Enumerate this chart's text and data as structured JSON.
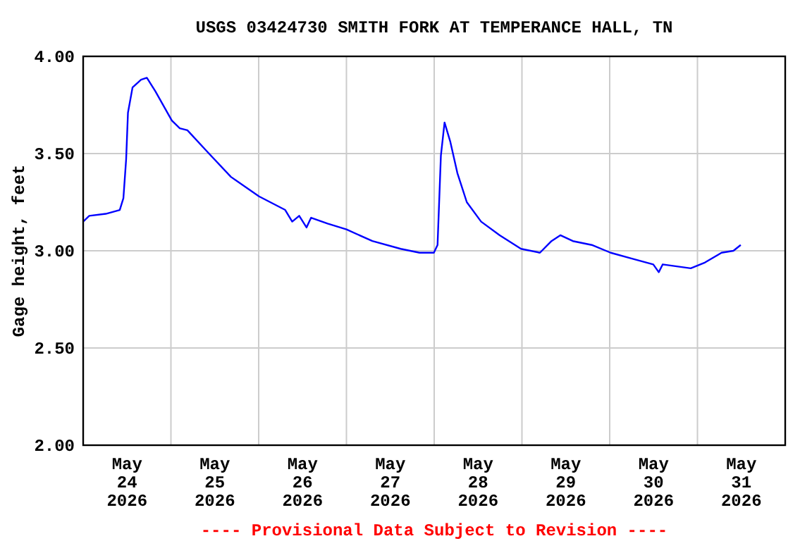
{
  "chart_data": {
    "type": "line",
    "title": "USGS 03424730 SMITH FORK AT TEMPERANCE HALL, TN",
    "ylabel": "Gage height, feet",
    "annotations": [
      "---- Provisional Data Subject to Revision ----"
    ],
    "series": [
      {
        "color": "#0000ff",
        "x": [
          "2026-05-24T00:00",
          "2026-05-24T01:40",
          "2026-05-24T06:10",
          "2026-05-24T10:00",
          "2026-05-24T11:00",
          "2026-05-24T11:45",
          "2026-05-24T12:15",
          "2026-05-24T13:30",
          "2026-05-24T15:50",
          "2026-05-24T17:25",
          "2026-05-24T19:45",
          "2026-05-25T00:15",
          "2026-05-25T02:25",
          "2026-05-25T04:30",
          "2026-05-25T09:55",
          "2026-05-25T16:25",
          "2026-05-26T00:05",
          "2026-05-26T07:15",
          "2026-05-26T09:10",
          "2026-05-26T11:05",
          "2026-05-26T13:05",
          "2026-05-26T14:20",
          "2026-05-26T18:50",
          "2026-05-27T00:00",
          "2026-05-27T07:05",
          "2026-05-27T14:50",
          "2026-05-27T20:00",
          "2026-05-27T23:55",
          "2026-05-28T00:55",
          "2026-05-28T01:50",
          "2026-05-28T02:50",
          "2026-05-28T04:25",
          "2026-05-28T06:20",
          "2026-05-28T08:55",
          "2026-05-28T12:50",
          "2026-05-28T17:55",
          "2026-05-28T23:45",
          "2026-05-29T04:55",
          "2026-05-29T08:05",
          "2026-05-29T10:30",
          "2026-05-29T13:55",
          "2026-05-29T19:05",
          "2026-05-30T00:15",
          "2026-05-30T06:05",
          "2026-05-30T11:55",
          "2026-05-30T13:25",
          "2026-05-30T14:30",
          "2026-05-30T22:10",
          "2026-05-31T02:05",
          "2026-05-31T06:35",
          "2026-05-31T09:50",
          "2026-05-31T11:50"
        ],
        "values": [
          3.15,
          3.18,
          3.19,
          3.21,
          3.27,
          3.47,
          3.71,
          3.84,
          3.88,
          3.89,
          3.82,
          3.67,
          3.63,
          3.62,
          3.51,
          3.38,
          3.28,
          3.21,
          3.15,
          3.18,
          3.12,
          3.17,
          3.14,
          3.11,
          3.05,
          3.01,
          2.99,
          2.99,
          3.03,
          3.49,
          3.66,
          3.56,
          3.4,
          3.25,
          3.15,
          3.08,
          3.01,
          2.99,
          3.05,
          3.08,
          3.05,
          3.03,
          2.99,
          2.96,
          2.93,
          2.89,
          2.93,
          2.91,
          2.94,
          2.99,
          3.0,
          3.03
        ]
      }
    ],
    "xlim": [
      "2026-05-24T00:00",
      "2026-06-01T00:00"
    ],
    "xticks": [
      {
        "value": "2026-05-24T12:00",
        "label": "May\n24\n2026"
      },
      {
        "value": "2026-05-25T12:00",
        "label": "May\n25\n2026"
      },
      {
        "value": "2026-05-26T12:00",
        "label": "May\n26\n2026"
      },
      {
        "value": "2026-05-27T12:00",
        "label": "May\n27\n2026"
      },
      {
        "value": "2026-05-28T12:00",
        "label": "May\n28\n2026"
      },
      {
        "value": "2026-05-29T12:00",
        "label": "May\n29\n2026"
      },
      {
        "value": "2026-05-30T12:00",
        "label": "May\n30\n2026"
      },
      {
        "value": "2026-05-31T12:00",
        "label": "May\n31\n2026"
      },
      {
        "value": "2026-05-25T00:00",
        "label": null
      },
      {
        "value": "2026-05-26T00:00",
        "label": null
      },
      {
        "value": "2026-05-27T00:00",
        "label": null
      },
      {
        "value": "2026-05-28T00:00",
        "label": null
      },
      {
        "value": "2026-05-29T00:00",
        "label": null
      },
      {
        "value": "2026-05-30T00:00",
        "label": null
      },
      {
        "value": "2026-05-31T00:00",
        "label": null
      }
    ],
    "ylim": [
      2,
      4
    ],
    "yticks": [
      {
        "value": 2,
        "label": "2.00"
      },
      {
        "value": 2.5,
        "label": "2.50"
      },
      {
        "value": 3,
        "label": "3.00"
      },
      {
        "value": 3.5,
        "label": "3.50"
      },
      {
        "value": 4,
        "label": "4.00"
      }
    ],
    "grid": true,
    "line_style": "solid",
    "marker": "none"
  }
}
